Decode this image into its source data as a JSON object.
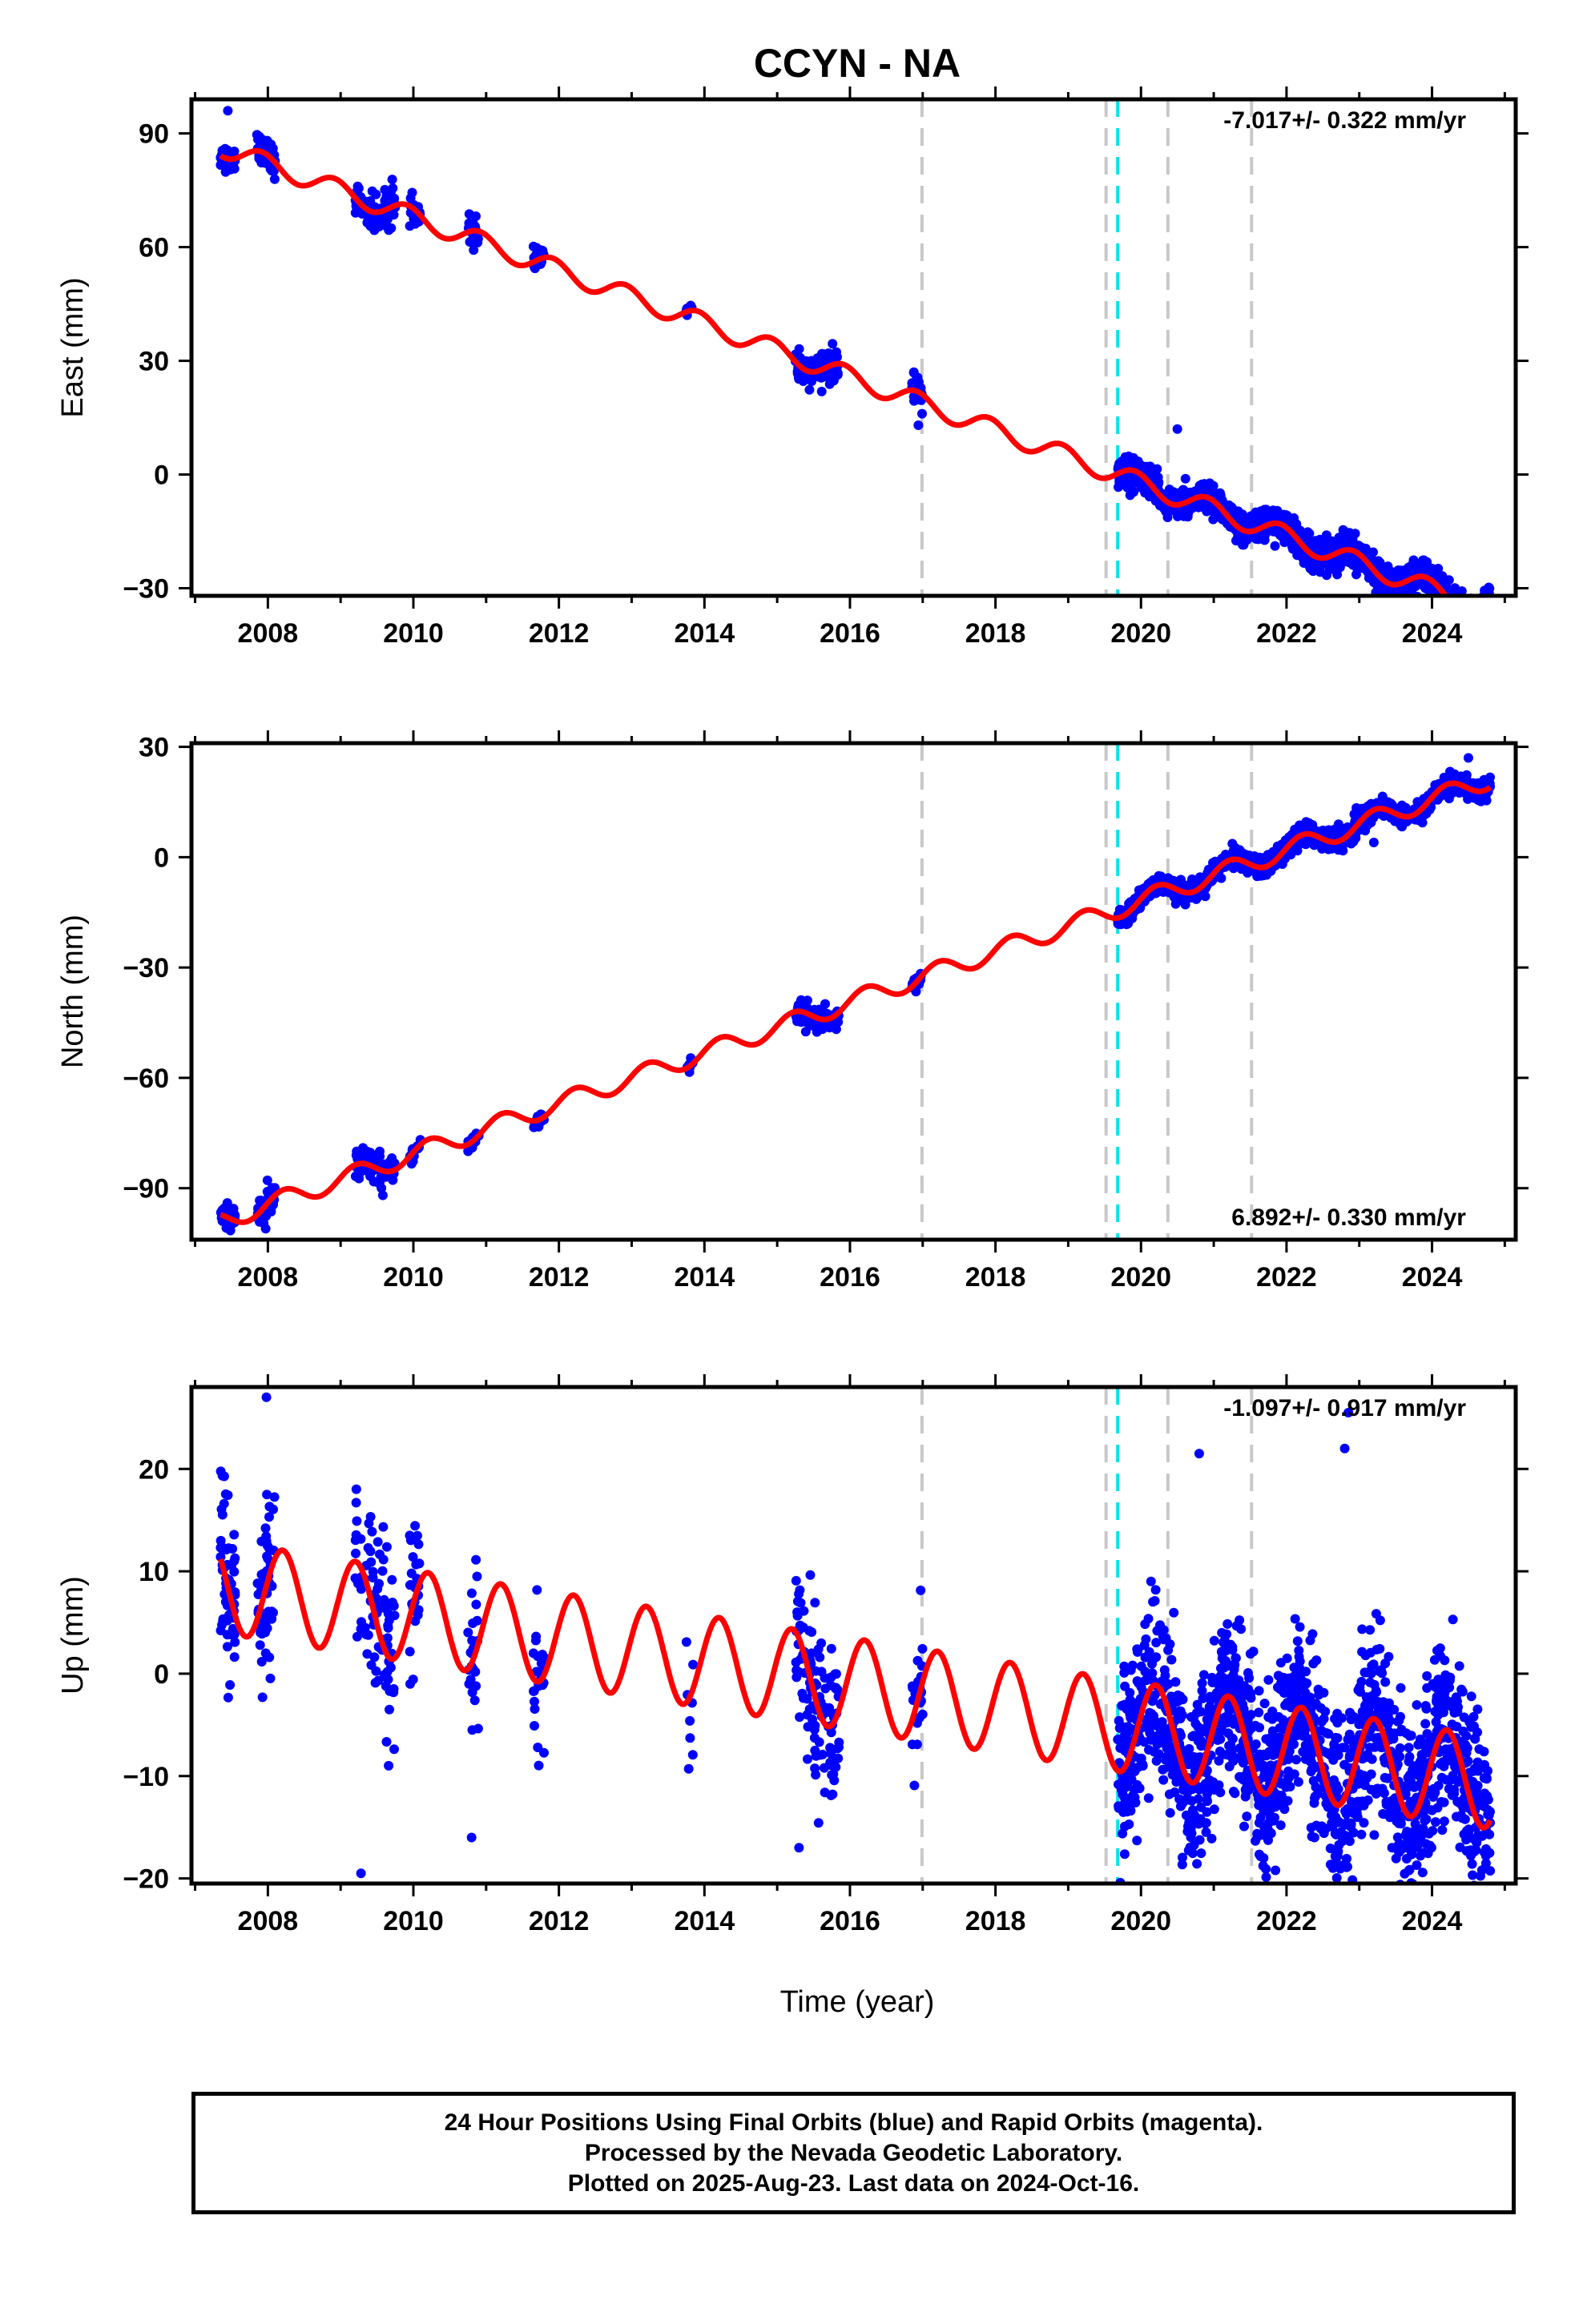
{
  "figure": {
    "title": "CCYN - NA",
    "xlabel": "Time (year)",
    "footer": [
      "24 Hour Positions Using Final Orbits (blue) and Rapid Orbits (magenta).",
      "Processed by the Nevada Geodetic Laboratory.",
      "Plotted on 2025-Aug-23. Last data on 2024-Oct-16."
    ],
    "colors": {
      "data_points": "#0000ff",
      "model_line": "#ff0000",
      "equipment_change": "#c8c8c8",
      "antenna_change": "#00e5ee"
    },
    "event_lines": {
      "gray": [
        2016.99,
        2019.52,
        2020.37,
        2021.52
      ],
      "cyan": [
        2019.68
      ]
    }
  },
  "chart_data": [
    {
      "type": "scatter",
      "name": "east",
      "ylabel": "East (mm)",
      "rate": "-7.017+/- 0.322 mm/yr",
      "rate_position": "top-right",
      "xlim": [
        2006.95,
        2025.15
      ],
      "ylim": [
        -32,
        99
      ],
      "x_ticks": [
        2008,
        2010,
        2012,
        2014,
        2016,
        2018,
        2020,
        2022,
        2024
      ],
      "x_tick_labels": [
        "2008",
        "2010",
        "2012",
        "2014",
        "2016",
        "2018",
        "2020",
        "2022",
        "2024"
      ],
      "y_ticks": [
        -30,
        0,
        30,
        60,
        90
      ],
      "y_tick_labels": [
        "−30",
        "0",
        "30",
        "60",
        "90"
      ],
      "model": {
        "offset": 0,
        "slope": -7.017,
        "ref_year": 2019.68,
        "annual_amp": 2.6,
        "annual_phase": 2.1
      },
      "segments": [
        {
          "start": 2007.35,
          "end": 2007.55,
          "count": 60,
          "scatter": 1.5
        },
        {
          "start": 2007.85,
          "end": 2008.1,
          "count": 60,
          "scatter": 2.0
        },
        {
          "start": 2009.2,
          "end": 2009.75,
          "count": 90,
          "scatter": 2.5
        },
        {
          "start": 2009.95,
          "end": 2010.1,
          "count": 25,
          "scatter": 1.5
        },
        {
          "start": 2010.75,
          "end": 2010.9,
          "count": 25,
          "scatter": 2.0
        },
        {
          "start": 2011.65,
          "end": 2011.8,
          "count": 25,
          "scatter": 1.5
        },
        {
          "start": 2013.75,
          "end": 2013.85,
          "count": 8,
          "scatter": 1.0
        },
        {
          "start": 2015.25,
          "end": 2015.85,
          "count": 110,
          "scatter": 2.0
        },
        {
          "start": 2016.85,
          "end": 2017.0,
          "count": 25,
          "scatter": 2.0
        },
        {
          "start": 2019.68,
          "end": 2024.8,
          "count": 1600,
          "scatter": 2.0
        }
      ],
      "outliers": [
        [
          2007.45,
          96
        ],
        [
          2016.94,
          13
        ],
        [
          2020.5,
          12
        ],
        [
          2022.1,
          -14
        ],
        [
          2022.55,
          -16
        ]
      ]
    },
    {
      "type": "scatter",
      "name": "north",
      "ylabel": "North (mm)",
      "rate": "6.892+/- 0.330 mm/yr",
      "rate_position": "bottom-right",
      "xlim": [
        2006.95,
        2025.15
      ],
      "ylim": [
        -104,
        31
      ],
      "x_ticks": [
        2008,
        2010,
        2012,
        2014,
        2016,
        2018,
        2020,
        2022,
        2024
      ],
      "x_tick_labels": [
        "2008",
        "2010",
        "2012",
        "2014",
        "2016",
        "2018",
        "2020",
        "2022",
        "2024"
      ],
      "y_ticks": [
        -90,
        -60,
        -30,
        0,
        30
      ],
      "y_tick_labels": [
        "−90",
        "−60",
        "−30",
        "0",
        "30"
      ],
      "model": {
        "offset": -14,
        "slope": 6.892,
        "ref_year": 2019.68,
        "annual_amp": 2.6,
        "annual_phase": 0.2
      },
      "segments": [
        {
          "start": 2007.35,
          "end": 2007.55,
          "count": 60,
          "scatter": 1.5
        },
        {
          "start": 2007.85,
          "end": 2008.1,
          "count": 60,
          "scatter": 2.0
        },
        {
          "start": 2009.2,
          "end": 2009.75,
          "count": 90,
          "scatter": 2.0
        },
        {
          "start": 2009.95,
          "end": 2010.1,
          "count": 25,
          "scatter": 1.0
        },
        {
          "start": 2010.75,
          "end": 2010.9,
          "count": 25,
          "scatter": 1.0
        },
        {
          "start": 2011.65,
          "end": 2011.8,
          "count": 25,
          "scatter": 1.0
        },
        {
          "start": 2013.75,
          "end": 2013.85,
          "count": 8,
          "scatter": 0.8
        },
        {
          "start": 2015.25,
          "end": 2015.85,
          "count": 110,
          "scatter": 1.5
        },
        {
          "start": 2016.85,
          "end": 2017.0,
          "count": 25,
          "scatter": 1.5
        },
        {
          "start": 2019.68,
          "end": 2024.8,
          "count": 1600,
          "scatter": 1.3
        }
      ],
      "outliers": [
        [
          2007.97,
          -101
        ],
        [
          2023.2,
          4
        ],
        [
          2024.5,
          27
        ]
      ]
    },
    {
      "type": "scatter",
      "name": "up",
      "ylabel": "Up (mm)",
      "rate": "-1.097+/- 0.917 mm/yr",
      "rate_position": "top-right",
      "xlim": [
        2006.95,
        2025.15
      ],
      "ylim": [
        -20.5,
        28
      ],
      "x_ticks": [
        2008,
        2010,
        2012,
        2014,
        2016,
        2018,
        2020,
        2022,
        2024
      ],
      "x_tick_labels": [
        "2008",
        "2010",
        "2012",
        "2014",
        "2016",
        "2018",
        "2020",
        "2022",
        "2024"
      ],
      "y_ticks": [
        -20,
        -10,
        0,
        10,
        20
      ],
      "y_tick_labels": [
        "−20",
        "−10",
        "0",
        "10",
        "20"
      ],
      "model": {
        "offset": -1.0,
        "slope": -1.097,
        "ref_year": 2016.0,
        "annual_amp": 4.5,
        "annual_phase": 0.3
      },
      "segments": [
        {
          "start": 2007.35,
          "end": 2007.55,
          "count": 60,
          "scatter": 4.5
        },
        {
          "start": 2007.85,
          "end": 2008.1,
          "count": 60,
          "scatter": 4.5
        },
        {
          "start": 2009.2,
          "end": 2009.75,
          "count": 90,
          "scatter": 4.5
        },
        {
          "start": 2009.95,
          "end": 2010.1,
          "count": 25,
          "scatter": 3.5
        },
        {
          "start": 2010.75,
          "end": 2010.9,
          "count": 25,
          "scatter": 4.0
        },
        {
          "start": 2011.65,
          "end": 2011.8,
          "count": 25,
          "scatter": 3.5
        },
        {
          "start": 2013.75,
          "end": 2013.85,
          "count": 8,
          "scatter": 2.5
        },
        {
          "start": 2015.25,
          "end": 2015.85,
          "count": 110,
          "scatter": 4.0
        },
        {
          "start": 2016.85,
          "end": 2017.0,
          "count": 25,
          "scatter": 3.5
        },
        {
          "start": 2019.68,
          "end": 2024.8,
          "count": 1600,
          "scatter": 4.2
        }
      ],
      "outliers": [
        [
          2007.98,
          27
        ],
        [
          2009.28,
          -19.5
        ],
        [
          2009.95,
          13.5
        ],
        [
          2010.8,
          -16
        ],
        [
          2015.3,
          -17
        ],
        [
          2020.8,
          21.5
        ],
        [
          2022.8,
          22
        ],
        [
          2022.85,
          25.5
        ],
        [
          2023.45,
          -17
        ]
      ]
    }
  ]
}
